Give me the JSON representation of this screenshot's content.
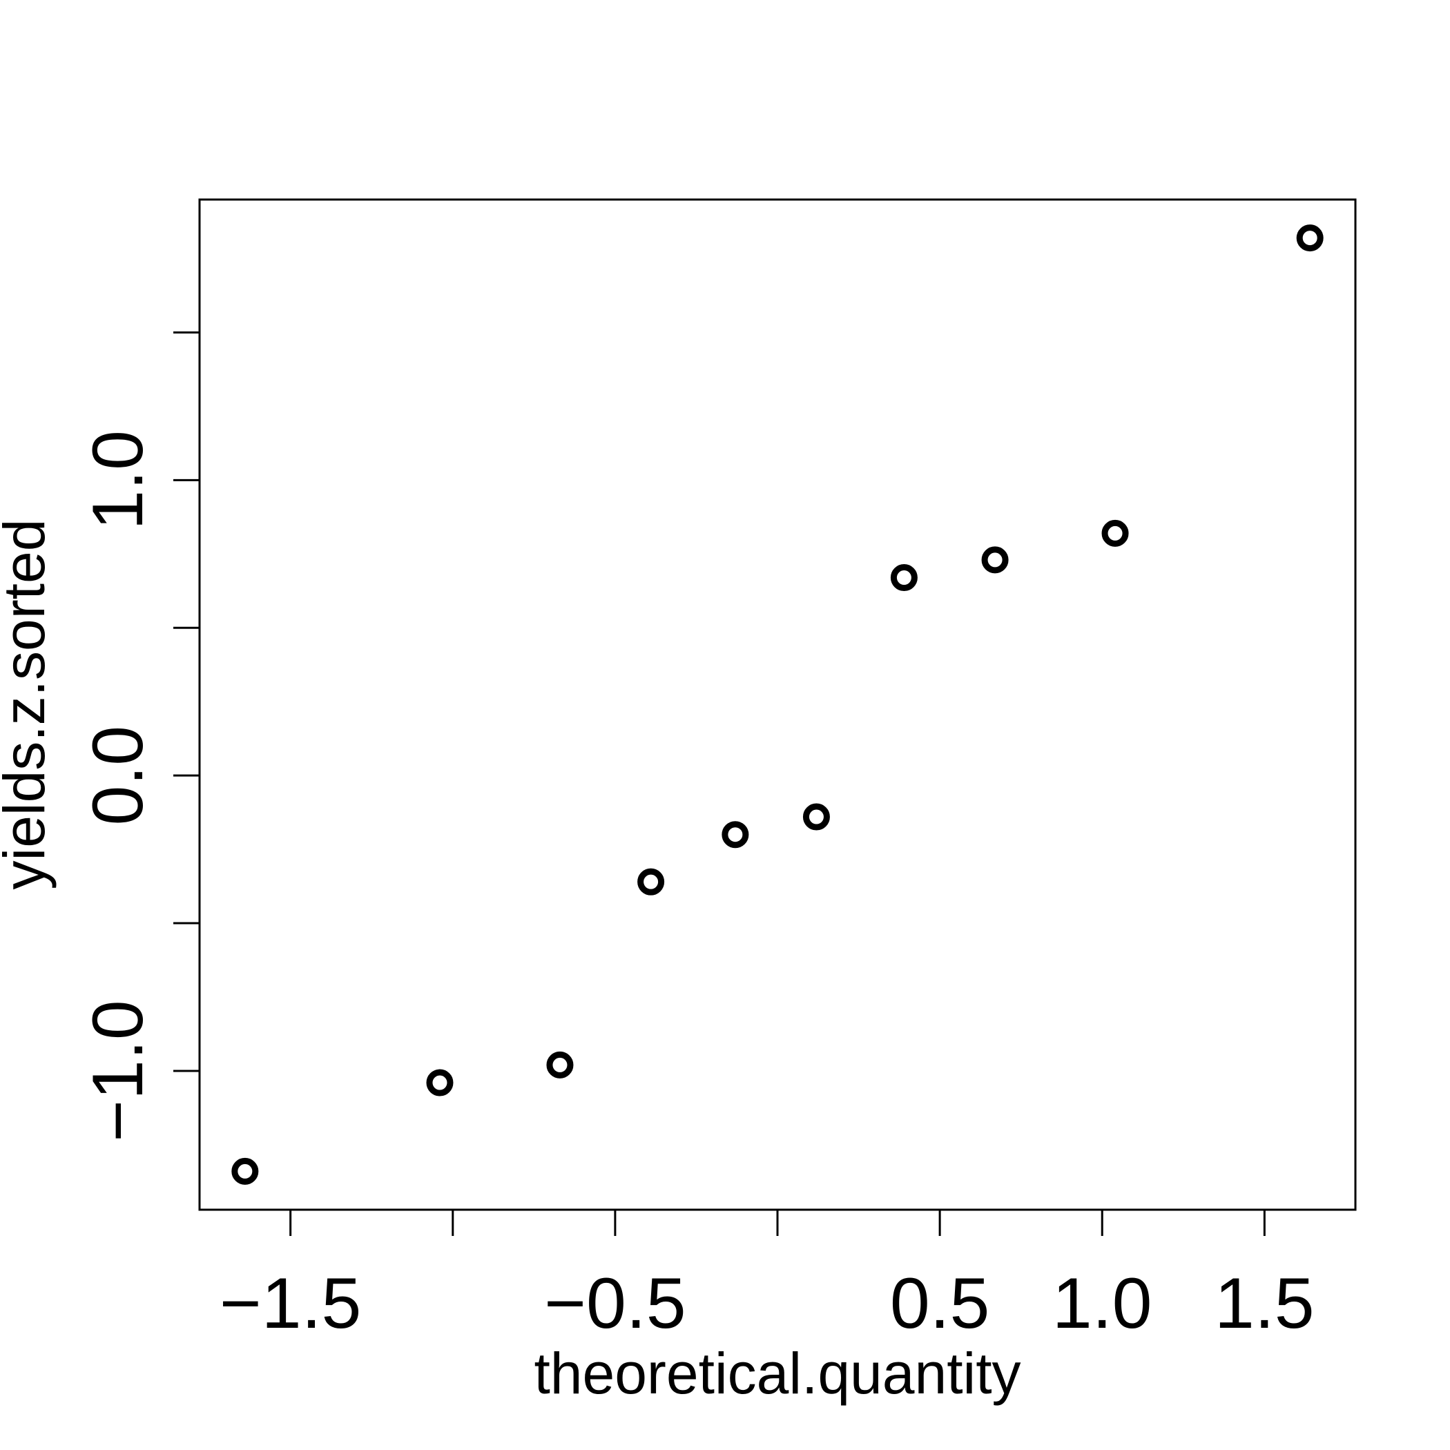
{
  "chart_data": {
    "type": "scatter",
    "title": "",
    "xlabel": "theoretical.quantity",
    "ylabel": "yields.z.sorted",
    "xlim": [
      -1.78,
      1.78
    ],
    "ylim": [
      -1.47,
      1.95
    ],
    "x_ticks": [
      -1.5,
      -1.0,
      -0.5,
      0.0,
      0.5,
      1.0,
      1.5
    ],
    "x_tick_labels": [
      "−1.5",
      "",
      "−0.5",
      "",
      "0.5",
      "1.0",
      "1.5"
    ],
    "y_ticks": [
      -1.0,
      -0.5,
      0.0,
      0.5,
      1.0,
      1.5
    ],
    "y_tick_labels": [
      "−1.0",
      "",
      "0.0",
      "",
      "1.0",
      ""
    ],
    "grid": false,
    "legend": "none",
    "marker": "open-circle",
    "color": "#000000",
    "points": [
      {
        "x": -1.64,
        "y": -1.34
      },
      {
        "x": -1.04,
        "y": -1.04
      },
      {
        "x": -0.67,
        "y": -0.98
      },
      {
        "x": -0.39,
        "y": -0.36
      },
      {
        "x": -0.13,
        "y": -0.2
      },
      {
        "x": 0.12,
        "y": -0.14
      },
      {
        "x": 0.39,
        "y": 0.67
      },
      {
        "x": 0.67,
        "y": 0.73
      },
      {
        "x": 1.04,
        "y": 0.82
      },
      {
        "x": 1.64,
        "y": 1.82
      }
    ]
  }
}
